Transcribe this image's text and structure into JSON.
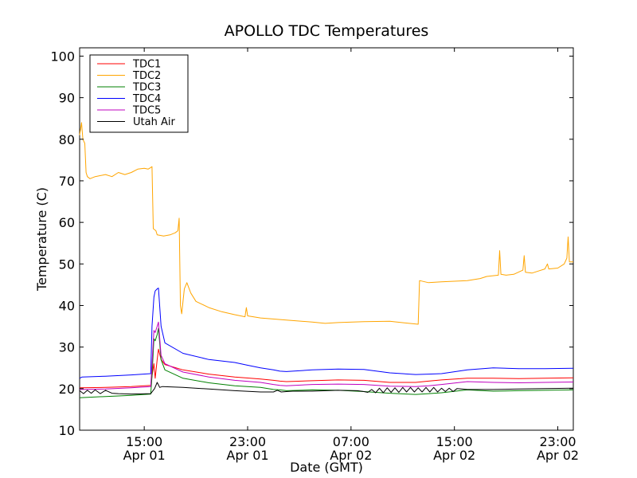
{
  "chart_data": {
    "type": "line",
    "title": "APOLLO TDC Temperatures",
    "xlabel": "Date (GMT)",
    "ylabel": "Temperature (C)",
    "x_unit": "hours since Apr 01 10:00 GMT",
    "xlim": [
      0,
      38.2
    ],
    "ylim": [
      10,
      102
    ],
    "yticks": [
      10,
      20,
      30,
      40,
      50,
      60,
      70,
      80,
      90,
      100
    ],
    "xticks": [
      {
        "x": 5,
        "line1": "15:00",
        "line2": "Apr 01"
      },
      {
        "x": 13,
        "line1": "23:00",
        "line2": "Apr 01"
      },
      {
        "x": 21,
        "line1": "07:00",
        "line2": "Apr 02"
      },
      {
        "x": 29,
        "line1": "15:00",
        "line2": "Apr 02"
      },
      {
        "x": 37,
        "line1": "23:00",
        "line2": "Apr 02"
      }
    ],
    "legend_position": "top-left",
    "series": [
      {
        "name": "TDC1",
        "color": "#ff0000",
        "points": [
          [
            0,
            20.2
          ],
          [
            2,
            20.3
          ],
          [
            4,
            20.5
          ],
          [
            5.5,
            20.8
          ],
          [
            5.6,
            23
          ],
          [
            5.75,
            26
          ],
          [
            5.85,
            22.5
          ],
          [
            6.0,
            27
          ],
          [
            6.1,
            29.5
          ],
          [
            6.3,
            27
          ],
          [
            6.6,
            25.8
          ],
          [
            8,
            24.5
          ],
          [
            10,
            23.5
          ],
          [
            12,
            22.8
          ],
          [
            14,
            22.3
          ],
          [
            15,
            22
          ],
          [
            15.5,
            21.8
          ],
          [
            16,
            21.7
          ],
          [
            18,
            21.9
          ],
          [
            20,
            22.1
          ],
          [
            22,
            22
          ],
          [
            24,
            21.5
          ],
          [
            26,
            21.5
          ],
          [
            27,
            21.8
          ],
          [
            28,
            22.1
          ],
          [
            30,
            22.5
          ],
          [
            32,
            22.5
          ],
          [
            34,
            22.4
          ],
          [
            36,
            22.5
          ],
          [
            38.2,
            22.6
          ]
        ]
      },
      {
        "name": "TDC2",
        "color": "#ffa500",
        "points": [
          [
            0,
            81
          ],
          [
            0.15,
            84
          ],
          [
            0.25,
            80
          ],
          [
            0.4,
            79
          ],
          [
            0.5,
            72
          ],
          [
            0.6,
            71
          ],
          [
            0.8,
            70.5
          ],
          [
            1.2,
            71
          ],
          [
            2,
            71.5
          ],
          [
            2.5,
            71
          ],
          [
            3,
            72
          ],
          [
            3.5,
            71.5
          ],
          [
            4,
            72
          ],
          [
            4.5,
            72.8
          ],
          [
            5,
            73
          ],
          [
            5.3,
            72.8
          ],
          [
            5.5,
            73.2
          ],
          [
            5.6,
            73.4
          ],
          [
            5.7,
            58.5
          ],
          [
            5.9,
            58
          ],
          [
            6.0,
            57
          ],
          [
            6.5,
            56.7
          ],
          [
            7,
            57
          ],
          [
            7.4,
            57.5
          ],
          [
            7.6,
            58
          ],
          [
            7.7,
            61
          ],
          [
            7.8,
            40
          ],
          [
            7.9,
            38
          ],
          [
            8.1,
            44
          ],
          [
            8.3,
            45.5
          ],
          [
            8.6,
            43
          ],
          [
            9,
            41
          ],
          [
            10,
            39.5
          ],
          [
            11,
            38.5
          ],
          [
            12,
            37.8
          ],
          [
            12.8,
            37.3
          ],
          [
            12.9,
            39.5
          ],
          [
            13.0,
            37.5
          ],
          [
            14,
            37
          ],
          [
            16,
            36.5
          ],
          [
            18,
            36
          ],
          [
            19,
            35.7
          ],
          [
            20,
            35.9
          ],
          [
            22,
            36.1
          ],
          [
            24,
            36.2
          ],
          [
            25.5,
            35.7
          ],
          [
            26.2,
            35.5
          ],
          [
            26.3,
            46
          ],
          [
            27,
            45.5
          ],
          [
            28,
            45.7
          ],
          [
            30,
            46
          ],
          [
            31,
            46.5
          ],
          [
            31.5,
            47
          ],
          [
            32.4,
            47.3
          ],
          [
            32.5,
            53.2
          ],
          [
            32.6,
            47.5
          ],
          [
            33,
            47.3
          ],
          [
            33.6,
            47.5
          ],
          [
            34.3,
            48.5
          ],
          [
            34.4,
            52
          ],
          [
            34.5,
            48
          ],
          [
            35,
            47.8
          ],
          [
            35.5,
            48.3
          ],
          [
            36,
            48.8
          ],
          [
            36.2,
            50
          ],
          [
            36.3,
            48.8
          ],
          [
            37,
            49
          ],
          [
            37.5,
            50
          ],
          [
            37.7,
            51.4
          ],
          [
            37.8,
            56.5
          ],
          [
            37.9,
            50.5
          ],
          [
            38.2,
            50.5
          ]
        ]
      },
      {
        "name": "TDC3",
        "color": "#008000",
        "points": [
          [
            0,
            17.8
          ],
          [
            2,
            18.1
          ],
          [
            4,
            18.4
          ],
          [
            5.5,
            18.7
          ],
          [
            5.6,
            23
          ],
          [
            5.75,
            32
          ],
          [
            5.85,
            31.5
          ],
          [
            6.0,
            33
          ],
          [
            6.1,
            34.5
          ],
          [
            6.3,
            27
          ],
          [
            6.6,
            24.5
          ],
          [
            8,
            22.5
          ],
          [
            10,
            21.4
          ],
          [
            12,
            20.7
          ],
          [
            14,
            20.3
          ],
          [
            15,
            19.8
          ],
          [
            15.5,
            19.7
          ],
          [
            16,
            19.5
          ],
          [
            18,
            19.7
          ],
          [
            20,
            19.6
          ],
          [
            22,
            19.3
          ],
          [
            24,
            18.9
          ],
          [
            26,
            18.6
          ],
          [
            27,
            18.8
          ],
          [
            28,
            19
          ],
          [
            30,
            19.7
          ],
          [
            32,
            19.4
          ],
          [
            34,
            19.5
          ],
          [
            36,
            19.6
          ],
          [
            38.2,
            19.7
          ]
        ]
      },
      {
        "name": "TDC4",
        "color": "#0000ff",
        "points": [
          [
            0,
            22.5
          ],
          [
            0.2,
            22.8
          ],
          [
            2,
            23
          ],
          [
            4,
            23.3
          ],
          [
            5.5,
            23.6
          ],
          [
            5.6,
            35
          ],
          [
            5.75,
            42
          ],
          [
            5.85,
            43.5
          ],
          [
            6.0,
            44
          ],
          [
            6.1,
            44.2
          ],
          [
            6.3,
            35
          ],
          [
            6.6,
            31
          ],
          [
            8,
            28.5
          ],
          [
            10,
            27
          ],
          [
            12,
            26.3
          ],
          [
            12.9,
            25.7
          ],
          [
            14,
            25
          ],
          [
            15,
            24.5
          ],
          [
            15.5,
            24.2
          ],
          [
            16,
            24.1
          ],
          [
            18,
            24.5
          ],
          [
            20,
            24.7
          ],
          [
            22,
            24.6
          ],
          [
            24,
            23.8
          ],
          [
            26,
            23.4
          ],
          [
            27,
            23.5
          ],
          [
            28,
            23.6
          ],
          [
            30,
            24.5
          ],
          [
            32,
            25
          ],
          [
            34,
            24.8
          ],
          [
            36,
            24.8
          ],
          [
            38.2,
            24.9
          ]
        ]
      },
      {
        "name": "TDC5",
        "color": "#bf00bf",
        "points": [
          [
            0,
            19.8
          ],
          [
            2,
            19.9
          ],
          [
            4,
            20.2
          ],
          [
            5.5,
            20.5
          ],
          [
            5.6,
            26
          ],
          [
            5.75,
            34
          ],
          [
            5.85,
            33.5
          ],
          [
            6.0,
            35
          ],
          [
            6.1,
            36
          ],
          [
            6.3,
            28
          ],
          [
            6.6,
            26
          ],
          [
            8,
            24
          ],
          [
            10,
            22.8
          ],
          [
            12,
            22
          ],
          [
            14,
            21.5
          ],
          [
            15,
            21
          ],
          [
            15.5,
            20.8
          ],
          [
            16,
            20.7
          ],
          [
            18,
            21
          ],
          [
            20,
            21.1
          ],
          [
            22,
            21
          ],
          [
            24,
            20.6
          ],
          [
            26,
            20.5
          ],
          [
            27,
            20.7
          ],
          [
            28,
            21
          ],
          [
            30,
            21.7
          ],
          [
            32,
            21.5
          ],
          [
            34,
            21.4
          ],
          [
            36,
            21.5
          ],
          [
            38.2,
            21.6
          ]
        ]
      },
      {
        "name": "Utah Air",
        "color": "#000000",
        "points": [
          [
            0,
            19.5
          ],
          [
            0.3,
            18.8
          ],
          [
            0.6,
            19.6
          ],
          [
            0.9,
            18.9
          ],
          [
            1.2,
            19.7
          ],
          [
            1.6,
            18.8
          ],
          [
            2,
            19.6
          ],
          [
            2.5,
            18.9
          ],
          [
            3,
            18.8
          ],
          [
            4,
            18.7
          ],
          [
            5.5,
            18.8
          ],
          [
            5.8,
            20
          ],
          [
            6,
            21.5
          ],
          [
            6.2,
            20.3
          ],
          [
            6.4,
            20.5
          ],
          [
            8,
            20.3
          ],
          [
            10,
            19.9
          ],
          [
            12,
            19.5
          ],
          [
            14,
            19.2
          ],
          [
            15,
            19.2
          ],
          [
            15.3,
            19.6
          ],
          [
            15.6,
            19.2
          ],
          [
            16,
            19.3
          ],
          [
            16.5,
            19.4
          ],
          [
            18,
            19.4
          ],
          [
            20,
            19.6
          ],
          [
            21.5,
            19.5
          ],
          [
            22,
            19.3
          ],
          [
            22.3,
            19.1
          ],
          [
            22.6,
            19.8
          ],
          [
            22.9,
            19
          ],
          [
            23.2,
            20.1
          ],
          [
            23.5,
            19
          ],
          [
            23.8,
            20.2
          ],
          [
            24.1,
            19.1
          ],
          [
            24.4,
            20.2
          ],
          [
            24.7,
            19.1
          ],
          [
            25,
            20.3
          ],
          [
            25.3,
            19.2
          ],
          [
            25.6,
            20.3
          ],
          [
            25.9,
            19.2
          ],
          [
            26.2,
            20.2
          ],
          [
            26.5,
            19.2
          ],
          [
            26.8,
            20.3
          ],
          [
            27.1,
            19.2
          ],
          [
            27.4,
            20.3
          ],
          [
            27.7,
            19.2
          ],
          [
            28,
            20.1
          ],
          [
            28.3,
            19.3
          ],
          [
            28.6,
            20.1
          ],
          [
            28.9,
            19.3
          ],
          [
            29.2,
            20
          ],
          [
            30,
            19.8
          ],
          [
            32,
            19.8
          ],
          [
            34,
            19.9
          ],
          [
            36,
            20
          ],
          [
            38.2,
            20.1
          ]
        ]
      }
    ]
  }
}
